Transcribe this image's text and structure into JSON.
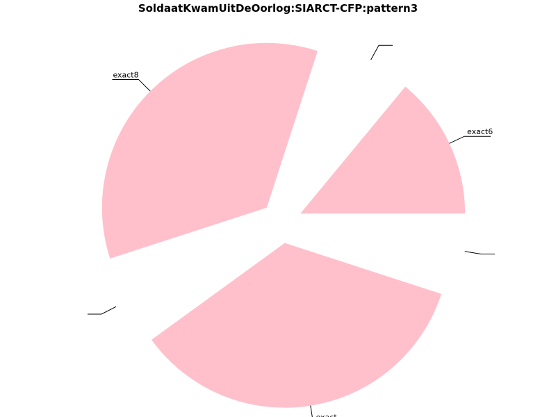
{
  "chart_data": {
    "type": "pie",
    "title": "SoldaatKwamUitDeOorlog:SIARCT-CFP:pattern3",
    "start_angle_deg": 0,
    "exploded": true,
    "slices": [
      {
        "label": "exact6",
        "value": 14,
        "color": "#ffc0cb"
      },
      {
        "label": "",
        "value": 6,
        "color": "#ffc0cb"
      },
      {
        "label": "exact8",
        "value": 35,
        "color": "#ffc0cb"
      },
      {
        "label": "",
        "value": 5,
        "color": "#ffc0cb"
      },
      {
        "label": "exact",
        "value": 35,
        "color": "#ffc0cb"
      },
      {
        "label": "",
        "value": 5,
        "color": "#ffc0cb"
      }
    ]
  }
}
